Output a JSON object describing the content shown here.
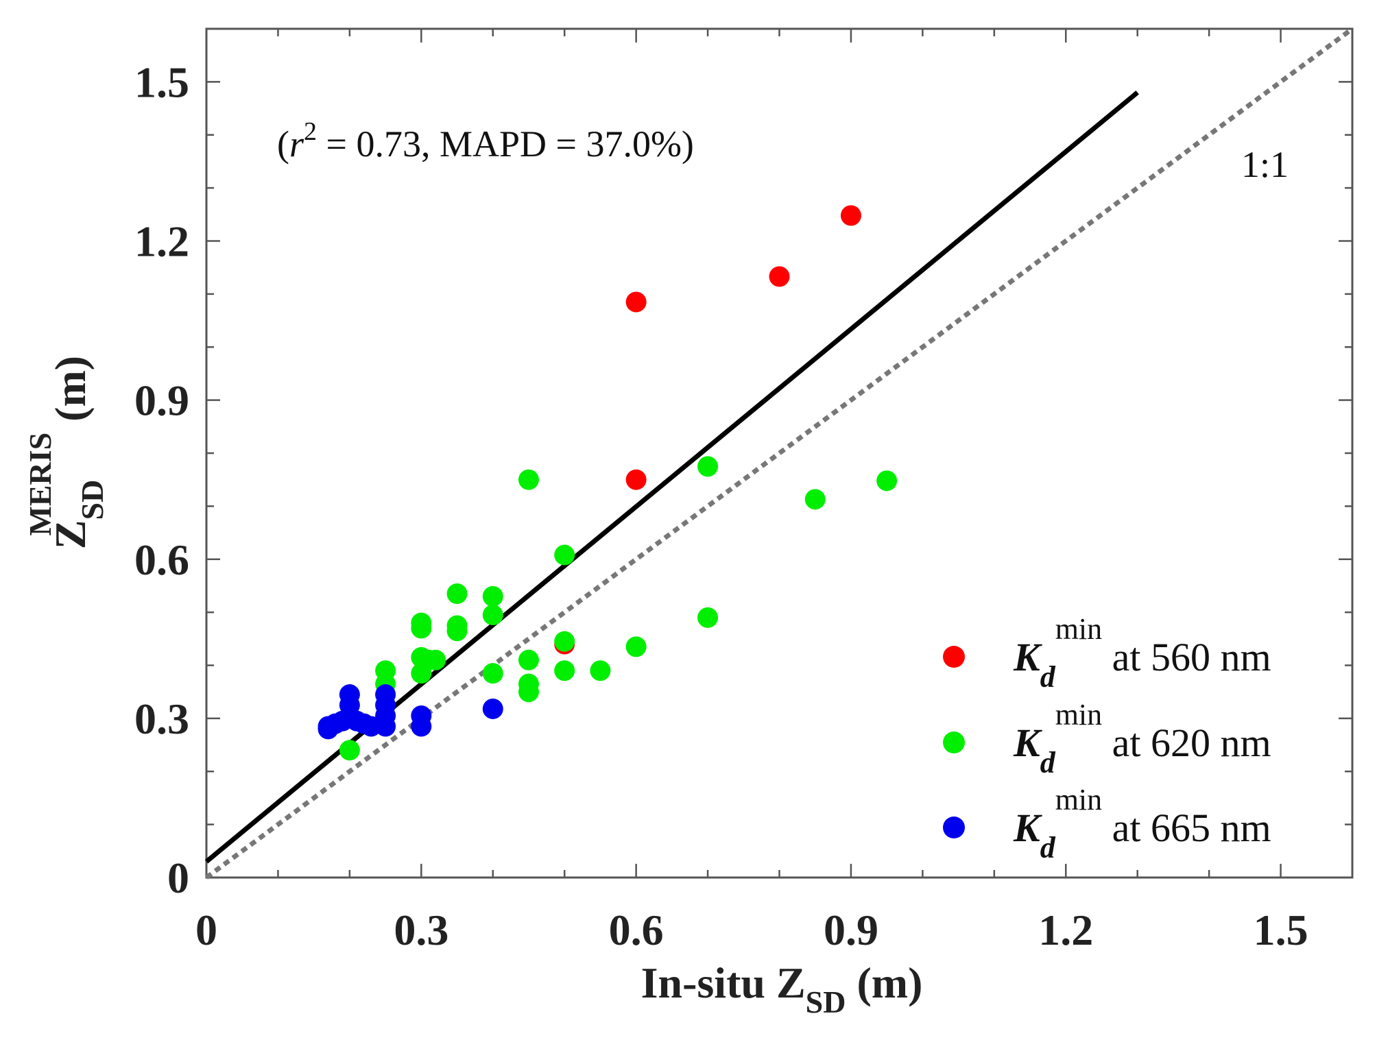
{
  "chart_data": {
    "type": "scatter",
    "xlabel": {
      "main": "In-situ Z",
      "sub": "SD",
      "unit": " (m)"
    },
    "ylabel": {
      "main": "Z",
      "sub": "SD",
      "sup": "MERIS",
      "unit": " (m)"
    },
    "xlim": [
      0,
      1.6
    ],
    "ylim": [
      0,
      1.6
    ],
    "xticks": [
      0,
      0.3,
      0.6,
      0.9,
      1.2,
      1.5
    ],
    "yticks": [
      0,
      0.3,
      0.6,
      0.9,
      1.2,
      1.5
    ],
    "xtick_labels": [
      "0",
      "0.3",
      "0.6",
      "0.9",
      "1.2",
      "1.5"
    ],
    "ytick_labels": [
      "0",
      "0.3",
      "0.6",
      "0.9",
      "1.2",
      "1.5"
    ],
    "minor_tick_step": 0.1,
    "grid": false,
    "legend_position": "bottom-right",
    "annotation": {
      "open": "(",
      "r_symbol": "r",
      "r_sup": "2",
      "rest": " = 0.73, MAPD = 37.0%)"
    },
    "one_to_one_label": "1:1",
    "regression_line": {
      "x": [
        0,
        1.3
      ],
      "y": [
        0.03,
        1.48
      ],
      "color": "#000000"
    },
    "one_to_one_line": {
      "x": [
        0,
        1.6
      ],
      "y": [
        0,
        1.6
      ],
      "color": "#777777",
      "style": "dotted"
    },
    "series": [
      {
        "legend": {
          "symbol": "K",
          "sub": "d",
          "sup": "min",
          "text": " at 560 nm"
        },
        "color": "#ff0000",
        "points": [
          [
            0.6,
            1.085
          ],
          [
            0.8,
            1.133
          ],
          [
            0.9,
            1.248
          ],
          [
            0.6,
            0.75
          ],
          [
            0.5,
            0.44
          ]
        ]
      },
      {
        "legend": {
          "symbol": "K",
          "sub": "d",
          "sup": "min",
          "text": " at 620 nm"
        },
        "color": "#00ee00",
        "points": [
          [
            0.45,
            0.75
          ],
          [
            0.7,
            0.775
          ],
          [
            0.95,
            0.748
          ],
          [
            0.85,
            0.713
          ],
          [
            0.5,
            0.608
          ],
          [
            0.35,
            0.535
          ],
          [
            0.4,
            0.53
          ],
          [
            0.4,
            0.495
          ],
          [
            0.3,
            0.48
          ],
          [
            0.3,
            0.47
          ],
          [
            0.35,
            0.475
          ],
          [
            0.35,
            0.465
          ],
          [
            0.7,
            0.49
          ],
          [
            0.5,
            0.445
          ],
          [
            0.6,
            0.435
          ],
          [
            0.45,
            0.41
          ],
          [
            0.55,
            0.39
          ],
          [
            0.5,
            0.39
          ],
          [
            0.4,
            0.385
          ],
          [
            0.3,
            0.415
          ],
          [
            0.31,
            0.41
          ],
          [
            0.32,
            0.41
          ],
          [
            0.3,
            0.385
          ],
          [
            0.25,
            0.39
          ],
          [
            0.25,
            0.365
          ],
          [
            0.45,
            0.365
          ],
          [
            0.45,
            0.35
          ],
          [
            0.2,
            0.24
          ]
        ]
      },
      {
        "legend": {
          "symbol": "K",
          "sub": "d",
          "sup": "min",
          "text": " at 665 nm"
        },
        "color": "#0000ee",
        "points": [
          [
            0.4,
            0.318
          ],
          [
            0.3,
            0.305
          ],
          [
            0.3,
            0.285
          ],
          [
            0.25,
            0.345
          ],
          [
            0.25,
            0.325
          ],
          [
            0.25,
            0.305
          ],
          [
            0.25,
            0.285
          ],
          [
            0.2,
            0.345
          ],
          [
            0.2,
            0.325
          ],
          [
            0.2,
            0.305
          ],
          [
            0.21,
            0.295
          ],
          [
            0.22,
            0.29
          ],
          [
            0.23,
            0.285
          ],
          [
            0.19,
            0.295
          ],
          [
            0.18,
            0.29
          ],
          [
            0.17,
            0.285
          ],
          [
            0.17,
            0.28
          ]
        ]
      }
    ]
  }
}
